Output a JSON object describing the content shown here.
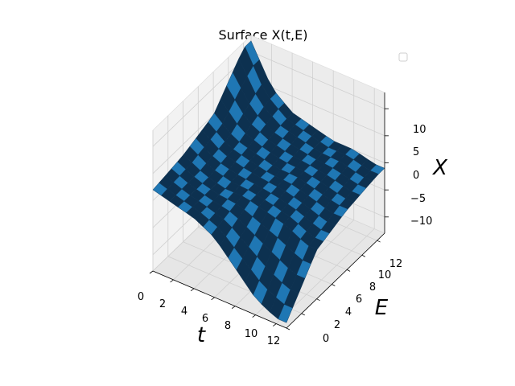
{
  "chart_data": {
    "type": "surface3d",
    "title": "Surface X(t,E)",
    "xlabel": "t",
    "ylabel": "E",
    "zlabel": "X",
    "x_ticks": [
      0,
      2,
      4,
      6,
      8,
      10,
      12
    ],
    "y_ticks": [
      0,
      2,
      4,
      6,
      8,
      10,
      12
    ],
    "z_ticks": [
      -10,
      -5,
      0,
      5,
      10
    ],
    "x_tick_labels": [
      "0",
      "2",
      "4",
      "6",
      "8",
      "10",
      "12"
    ],
    "y_tick_labels": [
      "0",
      "2",
      "4",
      "6",
      "8",
      "10",
      "12"
    ],
    "z_tick_labels": [
      "−10",
      "−5",
      "0",
      "5",
      "10"
    ],
    "xlim": [
      0,
      13
    ],
    "ylim": [
      0,
      13
    ],
    "zlim": [
      -13,
      13
    ],
    "grid": true,
    "legend": "upper-right (empty)",
    "surface_color": "#1f77b4",
    "shade_color": "#0d3150",
    "surface_description": "X rises to about 12 near t=0 at high E, stays near 0 across the middle, and dips to about -12 near t=12 at E=0; jagged step edges along t=0 and E=0 boundaries",
    "samples": {
      "t": [
        0,
        2,
        4,
        6,
        8,
        10,
        12
      ],
      "E": [
        0,
        4,
        8,
        12
      ],
      "X": [
        [
          2,
          3,
          5,
          12
        ],
        [
          1,
          1,
          2,
          5
        ],
        [
          0,
          0,
          1,
          2
        ],
        [
          -2,
          0,
          0,
          1
        ],
        [
          -6,
          -1,
          0,
          0
        ],
        [
          -10,
          -2,
          -1,
          0
        ],
        [
          -12,
          -4,
          -2,
          -1
        ]
      ]
    }
  }
}
